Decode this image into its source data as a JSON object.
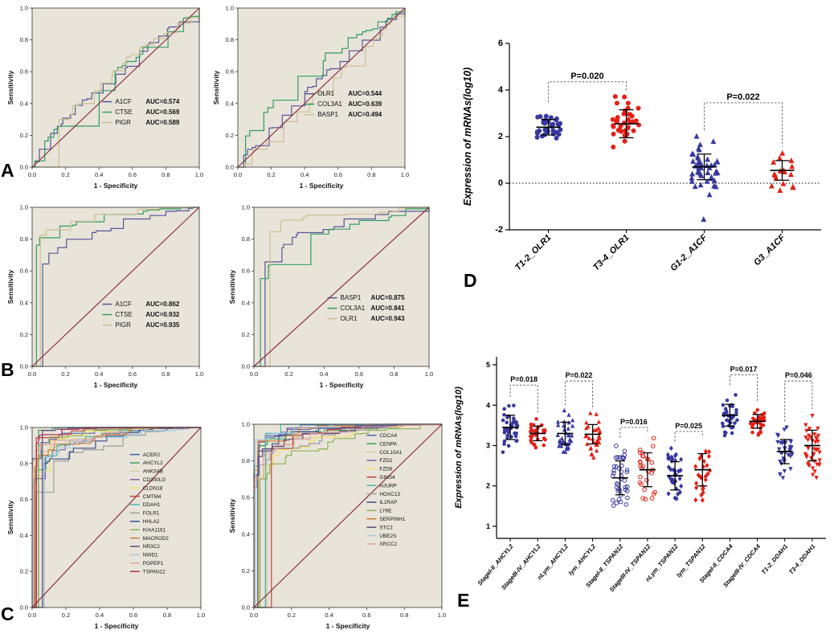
{
  "figure": {
    "panel_labels": [
      "A",
      "B",
      "C",
      "D",
      "E"
    ]
  },
  "roc_common": {
    "xlabel": "1 - Specificity",
    "ylabel": "Sensitivity",
    "tick_labels": [
      "0.0",
      "0.2",
      "0.4",
      "0.6",
      "0.8",
      "1.0"
    ],
    "plot_bg": "#e9e4da",
    "axis_color": "#333333",
    "diagonal_color": "#8b2e3f",
    "auc_prefix": "AUC="
  },
  "chart_data": [
    {
      "id": "roc-a-left",
      "panel": "A",
      "type": "line",
      "variant": "roc-step",
      "xlabel": "1 - Specificity",
      "ylabel": "Sensitivity",
      "xlim": [
        0,
        1
      ],
      "ylim": [
        0,
        1
      ],
      "diagonal": true,
      "legend_shows_auc": true,
      "series": [
        {
          "name": "A1CF",
          "auc": 0.574,
          "color": "#5a5499"
        },
        {
          "name": "CTSE",
          "auc": 0.569,
          "color": "#2f9e60"
        },
        {
          "name": "PIGR",
          "auc": 0.589,
          "color": "#cdc08f"
        }
      ]
    },
    {
      "id": "roc-a-right",
      "panel": "A",
      "type": "line",
      "variant": "roc-step",
      "xlabel": "1 - Specificity",
      "ylabel": "Sensitivity",
      "xlim": [
        0,
        1
      ],
      "ylim": [
        0,
        1
      ],
      "diagonal": true,
      "legend_shows_auc": true,
      "series": [
        {
          "name": "OLR1",
          "auc": 0.544,
          "color": "#5a5499"
        },
        {
          "name": "COL3A1",
          "auc": 0.639,
          "color": "#2f9e60"
        },
        {
          "name": "BASP1",
          "auc": 0.494,
          "color": "#cdc08f"
        }
      ]
    },
    {
      "id": "roc-b-left",
      "panel": "B",
      "type": "line",
      "variant": "roc-step",
      "xlabel": "1 - Specificity",
      "ylabel": "Sensitivity",
      "xlim": [
        0,
        1
      ],
      "ylim": [
        0,
        1
      ],
      "diagonal": true,
      "legend_shows_auc": true,
      "series": [
        {
          "name": "A1CF",
          "auc": 0.862,
          "color": "#5a5499"
        },
        {
          "name": "CTSE",
          "auc": 0.932,
          "color": "#2f9e60"
        },
        {
          "name": "PIGR",
          "auc": 0.935,
          "color": "#cdc08f"
        }
      ]
    },
    {
      "id": "roc-b-right",
      "panel": "B",
      "type": "line",
      "variant": "roc-step",
      "xlabel": "1 - Specificity",
      "ylabel": "Sensitivity",
      "xlim": [
        0,
        1
      ],
      "ylim": [
        0,
        1
      ],
      "diagonal": true,
      "legend_shows_auc": true,
      "series": [
        {
          "name": "BASP1",
          "auc": 0.875,
          "color": "#5a5499"
        },
        {
          "name": "COL3A1",
          "auc": 0.841,
          "color": "#2f9e60"
        },
        {
          "name": "OLR1",
          "auc": 0.943,
          "color": "#cdc08f"
        }
      ]
    },
    {
      "id": "roc-c-left",
      "panel": "C",
      "type": "line",
      "variant": "roc-step",
      "xlabel": "1 - Specificity",
      "ylabel": "Sensitivity",
      "xlim": [
        0,
        1
      ],
      "ylim": [
        0,
        1
      ],
      "diagonal": true,
      "legend_shows_auc": false,
      "series": [
        {
          "name": "ACER2",
          "auc": 0.97,
          "color": "#4f63a8"
        },
        {
          "name": "AHCYL2",
          "auc": 0.99,
          "color": "#3aa05a"
        },
        {
          "name": "ANKS4B",
          "auc": 0.95,
          "color": "#d6cfa0"
        },
        {
          "name": "CD300LG",
          "auc": 0.93,
          "color": "#7d5fa5"
        },
        {
          "name": "CLDN18",
          "auc": 0.96,
          "color": "#f4e06b"
        },
        {
          "name": "CMTM4",
          "auc": 0.98,
          "color": "#c2423c"
        },
        {
          "name": "DDAH1",
          "auc": 0.94,
          "color": "#49b7b0"
        },
        {
          "name": "FOLR1",
          "auc": 0.9,
          "color": "#9c9c9c"
        },
        {
          "name": "HHLA2",
          "auc": 0.92,
          "color": "#31508c"
        },
        {
          "name": "KIAA1161",
          "auc": 0.97,
          "color": "#8ab44f"
        },
        {
          "name": "MACROD2",
          "auc": 0.95,
          "color": "#c77f2f"
        },
        {
          "name": "NR3C2",
          "auc": 0.99,
          "color": "#5d4a7e"
        },
        {
          "name": "NWD1",
          "auc": 0.93,
          "color": "#a5cde0"
        },
        {
          "name": "PGPEP1",
          "auc": 0.96,
          "color": "#e2a3a0"
        },
        {
          "name": "TSPAN12",
          "auc": 0.98,
          "color": "#b03060"
        }
      ]
    },
    {
      "id": "roc-c-right",
      "panel": "C",
      "type": "line",
      "variant": "roc-step",
      "xlabel": "1 - Specificity",
      "ylabel": "Sensitivity",
      "xlim": [
        0,
        1
      ],
      "ylim": [
        0,
        1
      ],
      "diagonal": true,
      "legend_shows_auc": false,
      "series": [
        {
          "name": "CDCA4",
          "auc": 0.98,
          "color": "#4f63a8"
        },
        {
          "name": "CENPA",
          "auc": 0.96,
          "color": "#3aa05a"
        },
        {
          "name": "COL10A1",
          "auc": 0.94,
          "color": "#d6cfa0"
        },
        {
          "name": "FZD2",
          "auc": 0.97,
          "color": "#7d5fa5"
        },
        {
          "name": "FZD6",
          "auc": 0.92,
          "color": "#f4e06b"
        },
        {
          "name": "GINS4",
          "auc": 0.95,
          "color": "#c2423c"
        },
        {
          "name": "HJURP",
          "auc": 0.99,
          "color": "#49b7b0"
        },
        {
          "name": "HOXC13",
          "auc": 0.93,
          "color": "#9c9c9c"
        },
        {
          "name": "IL1RAP",
          "auc": 0.96,
          "color": "#31508c"
        },
        {
          "name": "LY6E",
          "auc": 0.9,
          "color": "#8ab44f"
        },
        {
          "name": "SERPINH1",
          "auc": 0.97,
          "color": "#c77f2f"
        },
        {
          "name": "STC2",
          "auc": 0.95,
          "color": "#5d4a7e"
        },
        {
          "name": "UBE2S",
          "auc": 0.98,
          "color": "#a5cde0"
        },
        {
          "name": "XRCC2",
          "auc": 0.94,
          "color": "#e2a3a0"
        }
      ]
    },
    {
      "id": "scatter-d",
      "panel": "D",
      "type": "scatter",
      "ylabel": "Expression of mRNAs(log10)",
      "yticks": [
        -2,
        0,
        2,
        4,
        6
      ],
      "ylim": [
        -2,
        6
      ],
      "zero_line": {
        "y": 0,
        "style": "dotted"
      },
      "groups": [
        {
          "label": "T1-2_OLR1",
          "marker": "circle",
          "fill": "solid",
          "color": "#38389f",
          "n": 34,
          "mean": 2.4,
          "sd": 0.33,
          "min": 1.6,
          "max": 3.3
        },
        {
          "label": "T3-4_OLR1",
          "marker": "circle",
          "fill": "solid",
          "color": "#e32017",
          "n": 38,
          "mean": 2.55,
          "sd": 0.6,
          "min": 1.15,
          "max": 3.75
        },
        {
          "label": "G1-2_A1CF",
          "marker": "triangle",
          "fill": "solid",
          "color": "#38389f",
          "n": 46,
          "mean": 0.7,
          "sd": 0.55,
          "min": -0.5,
          "max": 2.1,
          "outliers": [
            -1.55
          ]
        },
        {
          "label": "G3_A1CF",
          "marker": "triangle",
          "fill": "solid",
          "color": "#e32017",
          "n": 18,
          "mean": 0.55,
          "sd": 0.42,
          "min": -0.35,
          "max": 1.4
        }
      ],
      "comparisons": [
        {
          "groups": [
            0,
            1
          ],
          "label": "P=0.020",
          "y": 4.35
        },
        {
          "groups": [
            2,
            3
          ],
          "label": "P=0.022",
          "y": 3.45
        }
      ]
    },
    {
      "id": "scatter-e",
      "panel": "E",
      "type": "scatter",
      "ylabel": "Expression of mRNAs(log10)",
      "yticks": [
        1,
        2,
        3,
        4,
        5
      ],
      "ylim": [
        0.7,
        5.2
      ],
      "groups": [
        {
          "label": "StageI-II_AHCYL2",
          "marker": "circle",
          "fill": "solid",
          "color": "#38389f",
          "n": 38,
          "mean": 3.45,
          "sd": 0.3,
          "min": 2.7,
          "max": 4.1
        },
        {
          "label": "StageIII-IV_AHCYL2",
          "marker": "circle",
          "fill": "solid",
          "color": "#e32017",
          "n": 30,
          "mean": 3.3,
          "sd": 0.18,
          "min": 2.9,
          "max": 3.7
        },
        {
          "label": "nLym_AHCYL2",
          "marker": "triangle",
          "fill": "solid",
          "color": "#38389f",
          "n": 34,
          "mean": 3.3,
          "sd": 0.28,
          "min": 2.6,
          "max": 3.9
        },
        {
          "label": "lym_AHCYL2",
          "marker": "triangle",
          "fill": "solid",
          "color": "#e32017",
          "n": 32,
          "mean": 3.28,
          "sd": 0.24,
          "min": 2.7,
          "max": 3.8
        },
        {
          "label": "StageI-II_TSPAN12",
          "marker": "circle",
          "fill": "open",
          "color": "#38389f",
          "n": 40,
          "mean": 2.2,
          "sd": 0.42,
          "min": 1.4,
          "max": 3.1
        },
        {
          "label": "StageIII-IV_TSPAN12",
          "marker": "circle",
          "fill": "open",
          "color": "#e32017",
          "n": 28,
          "mean": 2.4,
          "sd": 0.42,
          "min": 1.6,
          "max": 3.2
        },
        {
          "label": "nLym_TSPAN12",
          "marker": "diamond",
          "fill": "solid",
          "color": "#38389f",
          "n": 38,
          "mean": 2.25,
          "sd": 0.35,
          "min": 1.5,
          "max": 3.0
        },
        {
          "label": "lym_TSPAN12",
          "marker": "diamond",
          "fill": "solid",
          "color": "#e32017",
          "n": 26,
          "mean": 2.4,
          "sd": 0.4,
          "min": 1.6,
          "max": 3.1
        },
        {
          "label": "StageI-II_CDCA4",
          "marker": "circle",
          "fill": "solid",
          "color": "#38389f",
          "n": 36,
          "mean": 3.75,
          "sd": 0.27,
          "min": 3.2,
          "max": 4.4
        },
        {
          "label": "StageIII-IV_CDCA4",
          "marker": "circle",
          "fill": "solid",
          "color": "#e32017",
          "n": 28,
          "mean": 3.6,
          "sd": 0.17,
          "min": 3.2,
          "max": 4.0
        },
        {
          "label": "T1-2_DDAH1",
          "marker": "triangle-down",
          "fill": "solid",
          "color": "#38389f",
          "n": 34,
          "mean": 2.85,
          "sd": 0.3,
          "min": 2.2,
          "max": 3.5
        },
        {
          "label": "T3-4_DDAH1",
          "marker": "triangle-down",
          "fill": "solid",
          "color": "#e32017",
          "n": 40,
          "mean": 3.0,
          "sd": 0.38,
          "min": 2.1,
          "max": 3.8
        }
      ],
      "comparisons": [
        {
          "groups": [
            0,
            1
          ],
          "label": "P=0.018",
          "y": 4.5
        },
        {
          "groups": [
            2,
            3
          ],
          "label": "P=0.022",
          "y": 4.6
        },
        {
          "groups": [
            4,
            5
          ],
          "label": "P=0.016",
          "y": 3.45
        },
        {
          "groups": [
            6,
            7
          ],
          "label": "P=0.025",
          "y": 3.35
        },
        {
          "groups": [
            8,
            9
          ],
          "label": "P=0.017",
          "y": 4.75
        },
        {
          "groups": [
            10,
            11
          ],
          "label": "P=0.046",
          "y": 4.6
        }
      ]
    }
  ]
}
